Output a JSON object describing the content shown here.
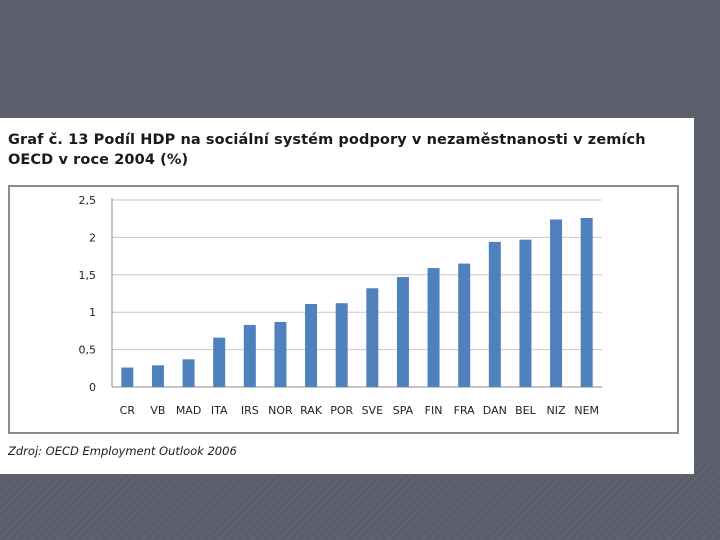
{
  "slide": {
    "title": "Graf č. 13 Podíl HDP na sociální systém podpory v nezaměstnanosti v zemích OECD v roce 2004 (%)",
    "source": "Zdroj: OECD Employment Outlook 2006"
  },
  "chart_data": {
    "type": "bar",
    "title": "",
    "xlabel": "",
    "ylabel": "",
    "categories": [
      "CR",
      "VB",
      "MAD",
      "ITA",
      "IRS",
      "NOR",
      "RAK",
      "POR",
      "SVE",
      "SPA",
      "FIN",
      "FRA",
      "DAN",
      "BEL",
      "NIZ",
      "NEM"
    ],
    "values": [
      0.26,
      0.29,
      0.37,
      0.66,
      0.83,
      0.87,
      1.11,
      1.12,
      1.32,
      1.47,
      1.59,
      1.65,
      1.94,
      1.97,
      2.24,
      2.26
    ],
    "ylim": [
      0,
      2.5
    ],
    "yticks": [
      "0",
      "0,5",
      "1",
      "1,5",
      "2",
      "2,5"
    ],
    "ytick_values": [
      0,
      0.5,
      1,
      1.5,
      2,
      2.5
    ],
    "grid": true,
    "legend": "none",
    "colors": {
      "bar": "#4f81bd",
      "grid": "#c8c8c8",
      "axis": "#8c8c8c"
    }
  }
}
